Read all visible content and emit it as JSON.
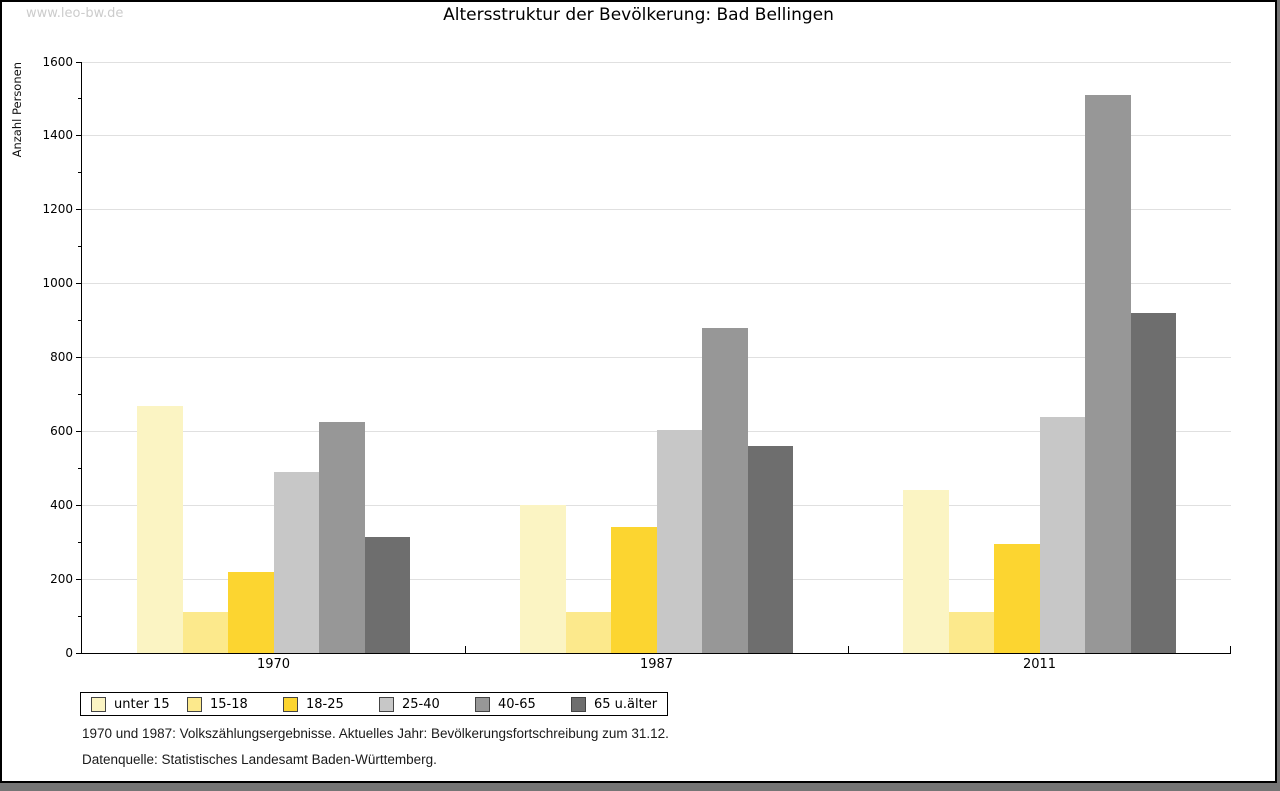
{
  "site": {
    "watermark": "www.leo-bw.de"
  },
  "footer": {
    "note1": "1970 und 1987: Volkszählungsergebnisse. Aktuelles Jahr: Bevölkerungsfortschreibung zum 31.12.",
    "note2": "Datenquelle: Statistisches Landesamt Baden-Württemberg."
  },
  "colors": {
    "panel_border": "#000000",
    "shadow": "#757575",
    "gridline": "#e0e0e0",
    "watermark": "#cccccc"
  },
  "chart_data": {
    "type": "bar",
    "title": "Altersstruktur der Bevölkerung: Bad Bellingen",
    "ylabel": "Anzahl Personen",
    "xlabel": "",
    "categories": [
      "1970",
      "1987",
      "2011"
    ],
    "series": [
      {
        "name": "unter 15",
        "color": "#FBF4C3",
        "values": [
          670,
          400,
          440
        ]
      },
      {
        "name": "15-18",
        "color": "#FCE98C",
        "values": [
          110,
          110,
          110
        ]
      },
      {
        "name": "18-25",
        "color": "#FCD530",
        "values": [
          220,
          340,
          295
        ]
      },
      {
        "name": "25-40",
        "color": "#C7C7C7",
        "values": [
          490,
          605,
          640
        ]
      },
      {
        "name": "40-65",
        "color": "#979797",
        "values": [
          625,
          880,
          1510
        ]
      },
      {
        "name": "65 u.älter",
        "color": "#6E6E6E",
        "values": [
          315,
          560,
          920
        ]
      }
    ],
    "ylim": [
      0,
      1600
    ],
    "ytick_step": 200,
    "yminor_step": 100,
    "grid": true,
    "legend_position": "bottom"
  }
}
